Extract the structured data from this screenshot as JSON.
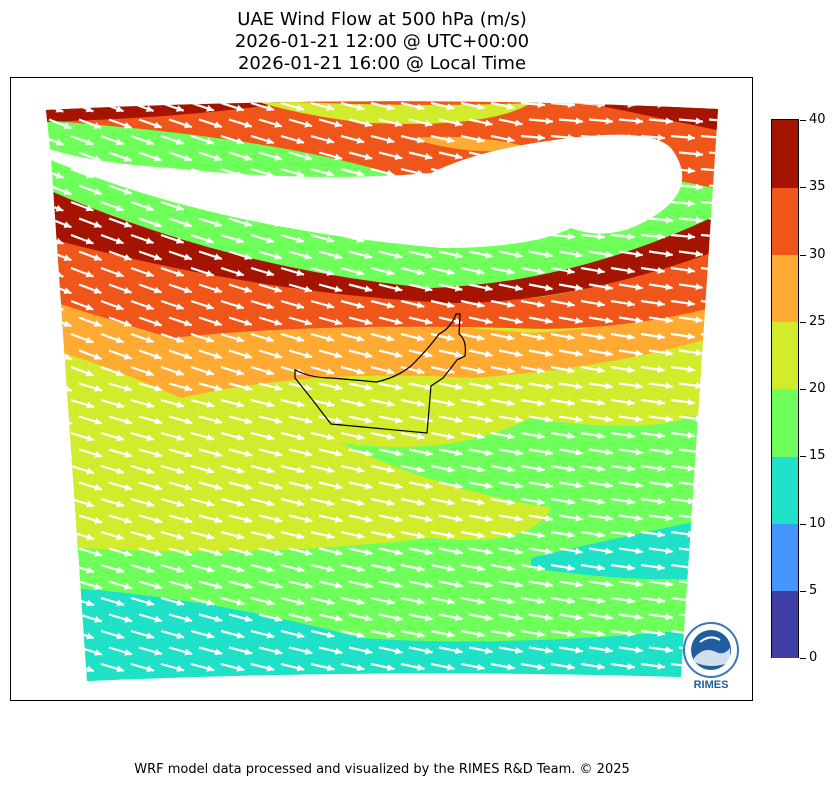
{
  "title": {
    "line1": "UAE Wind Flow at 500 hPa (m/s)",
    "line2": "2026-01-21 12:00 @ UTC+00:00",
    "line3": "2026-01-21 16:00 @ Local Time"
  },
  "map": {
    "region": "UAE",
    "field": "wind speed",
    "level": "500 hPa",
    "arrow_direction": "west-northwest to east-southeast",
    "speed_bands_visible": [
      "10-15",
      "15-20",
      "20-25",
      "25-30",
      "30-35",
      "35-40"
    ]
  },
  "colorbar": {
    "ticks": [
      "0",
      "5",
      "10",
      "15",
      "20",
      "25",
      "30",
      "35",
      "40"
    ],
    "colors": [
      "#3f3fa6",
      "#4696ff",
      "#1ee1c8",
      "#6eff5a",
      "#d2eb2d",
      "#ffaa32",
      "#f0551a",
      "#a51400"
    ]
  },
  "logo": {
    "text": "RIMES"
  },
  "footer": "WRF model data processed and visualized by the RIMES R&D Team. © 2025"
}
